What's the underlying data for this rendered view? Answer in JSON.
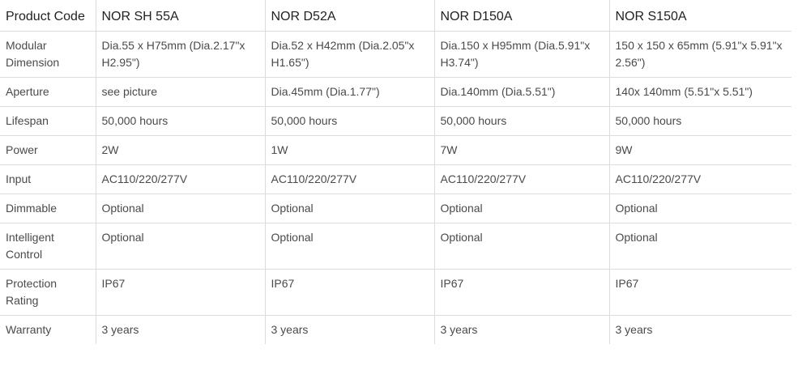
{
  "table": {
    "header": [
      "Product Code",
      "NOR SH 55A",
      "NOR D52A",
      "NOR D150A",
      "NOR S150A"
    ],
    "rows": [
      [
        "Modular Dimension",
        "Dia.55 x H75mm (Dia.2.17\"x H2.95\")",
        "Dia.52 x H42mm (Dia.2.05\"x H1.65\")",
        "Dia.150 x H95mm (Dia.5.91\"x H3.74\")",
        "150 x 150 x 65mm (5.91\"x 5.91\"x 2.56\")"
      ],
      [
        "Aperture",
        "see picture",
        "Dia.45mm (Dia.1.77\")",
        "Dia.140mm (Dia.5.51\")",
        "140x 140mm (5.51\"x 5.51\")"
      ],
      [
        "Lifespan",
        "50,000 hours",
        "50,000 hours",
        "50,000 hours",
        "50,000 hours"
      ],
      [
        "Power",
        "2W",
        "1W",
        "7W",
        "9W"
      ],
      [
        "Input",
        "AC110/220/277V",
        "AC110/220/277V",
        "AC110/220/277V",
        "AC110/220/277V"
      ],
      [
        "Dimmable",
        "Optional",
        "Optional",
        "Optional",
        "Optional"
      ],
      [
        "Intelligent Control",
        "Optional",
        "Optional",
        "Optional",
        "Optional"
      ],
      [
        "Protection Rating",
        "IP67",
        "IP67",
        "IP67",
        "IP67"
      ],
      [
        "Warranty",
        "3 years",
        "3 years",
        "3 years",
        "3 years"
      ]
    ]
  }
}
